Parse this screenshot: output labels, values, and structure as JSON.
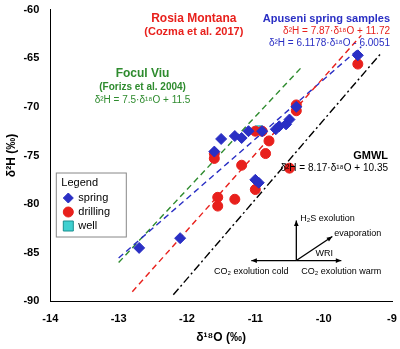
{
  "chart_data": {
    "type": "scatter",
    "x_label": "δ¹⁸O (‰)",
    "y_label": "δ²H (‰)",
    "xlim": [
      -14,
      -9
    ],
    "xticks": [
      -14,
      -13,
      -12,
      -11,
      -10,
      -9
    ],
    "ylim": [
      -90,
      -60
    ],
    "yticks": [
      -90,
      -85,
      -80,
      -75,
      -70,
      -65,
      -60
    ],
    "grid": false,
    "legend": "upper left",
    "legend_title": "Legend",
    "series": [
      {
        "name": "spring",
        "color": "#2a2fc4",
        "marker": "diamond",
        "x": [
          -12.7,
          -12.1,
          -11.6,
          -11.5,
          -11.3,
          -11.2,
          -11.1,
          -11.0,
          -10.95,
          -10.9,
          -10.7,
          -10.65,
          -10.55,
          -10.5,
          -10.4,
          -9.5
        ],
        "values": [
          -84.5,
          -83.5,
          -74.6,
          -73.3,
          -73.0,
          -73.2,
          -72.5,
          -77.5,
          -77.8,
          -72.5,
          -72.3,
          -72.0,
          -71.8,
          -71.3,
          -70.0,
          -64.7
        ]
      },
      {
        "name": "drilling",
        "color": "#e8201c",
        "marker": "circle",
        "x": [
          -11.6,
          -11.6,
          -11.55,
          -11.55,
          -11.3,
          -11.2,
          -11.0,
          -10.9,
          -10.85,
          -11.0,
          -10.8,
          -10.5,
          -10.4,
          -10.4,
          -9.5
        ],
        "values": [
          -74.8,
          -75.3,
          -79.3,
          -80.2,
          -79.5,
          -76.0,
          -72.5,
          -72.5,
          -74.8,
          -78.5,
          -73.5,
          -76.3,
          -69.8,
          -70.4,
          -65.6
        ]
      },
      {
        "name": "well",
        "color": "#3fd0d0",
        "marker": "square",
        "x": [
          -10.95
        ],
        "values": [
          -72.3
        ]
      }
    ],
    "lines": [
      {
        "label": "Rosia Montana",
        "reference": "(Cozma et al. 2017)",
        "equation": "δ²H = 7.87·δ¹⁸O + 11.72",
        "color": "#e8201c",
        "line_style": "dashed",
        "x": [
          -12.8,
          -9.45
        ],
        "values": [
          -89.0,
          -62.65
        ]
      },
      {
        "label": "Apuseni spring samples",
        "equation": "δ²H = 6.1178·δ¹⁸O - 6.0051",
        "color": "#2a2fc4",
        "line_style": "dashed",
        "x": [
          -13,
          -9.45
        ],
        "values": [
          -85.54,
          -63.82
        ]
      },
      {
        "label": "Focul Viu",
        "reference": "(Forizs et al. 2004)",
        "equation": "δ²H = 7.5·δ¹⁸O + 11.5",
        "color": "#2e8b2e",
        "line_style": "dashed",
        "x": [
          -13,
          -10.3
        ],
        "values": [
          -86.0,
          -65.75
        ]
      },
      {
        "label": "GMWL",
        "equation": "δ²H = 8.17·δ¹⁸O + 10.35",
        "color": "#000000",
        "line_style": "dashdot",
        "x": [
          -12.2,
          -9.15
        ],
        "values": [
          -89.32,
          -64.4
        ]
      }
    ],
    "process_arrows": [
      "H₂S exolution",
      "evaporation",
      "WRI",
      "CO₂ exolution cold",
      "CO₂ exolution warm"
    ]
  }
}
